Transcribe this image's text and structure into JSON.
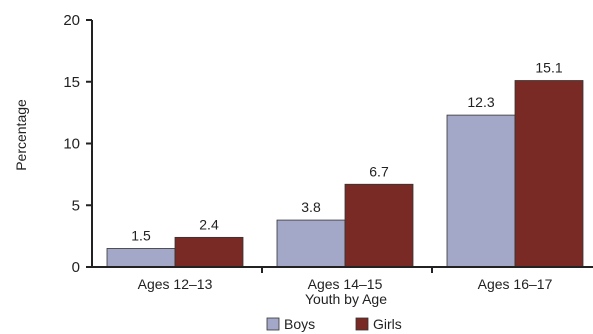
{
  "chart_data": {
    "type": "bar",
    "categories": [
      "Ages 12–13",
      "Ages 14–15",
      "Ages 16–17"
    ],
    "series": [
      {
        "name": "Boys",
        "values": [
          1.5,
          3.8,
          12.3
        ],
        "color": "#a4a8c8"
      },
      {
        "name": "Girls",
        "values": [
          2.4,
          6.7,
          15.1
        ],
        "color": "#7a2a24"
      }
    ],
    "data_labels": {
      "Boys": [
        "1.5",
        "3.8",
        "12.3"
      ],
      "Girls": [
        "2.4",
        "6.7",
        "15.1"
      ]
    },
    "xlabel": "Youth by Age",
    "ylabel": "Percentage",
    "ylim": [
      0,
      20
    ],
    "yticks": [
      "0",
      "5",
      "10",
      "15",
      "20"
    ],
    "grid": false,
    "legend_position": "bottom-center"
  }
}
